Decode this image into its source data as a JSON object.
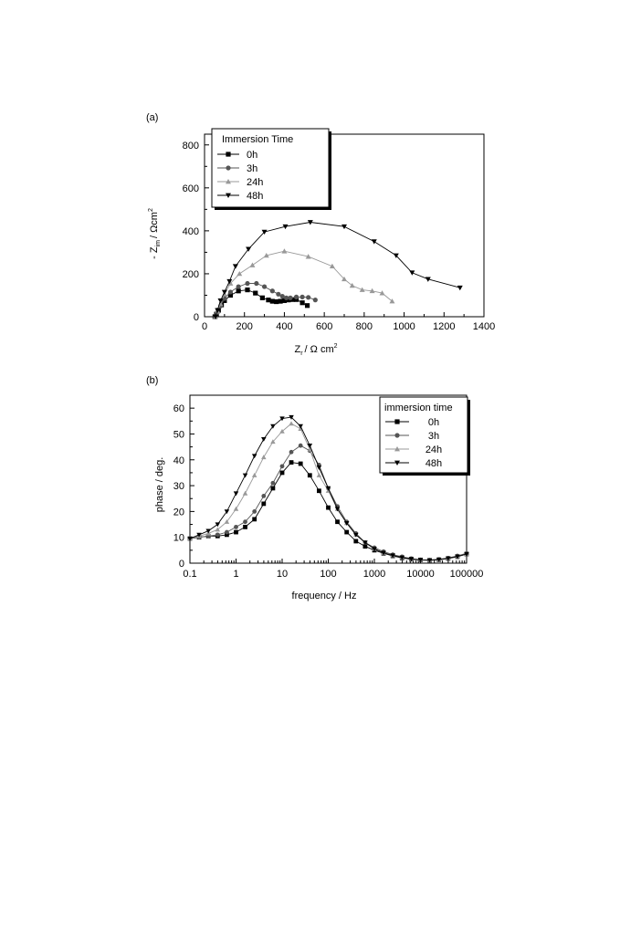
{
  "chart_data": [
    {
      "panel_label": "(a)",
      "type": "scatter",
      "xlabel": "Z",
      "xlabel_sub": "r",
      "xlabel_unit": "/ Ω cm",
      "xlabel_sup": "2",
      "ylabel": "- Z",
      "ylabel_sub": "im",
      "ylabel_unit": "/ Ωcm",
      "ylabel_sup": "2",
      "xlim": [
        0,
        1400
      ],
      "ylim": [
        0,
        850
      ],
      "x_ticks": [
        0,
        200,
        400,
        600,
        800,
        1000,
        1200,
        1400
      ],
      "y_ticks": [
        0,
        200,
        400,
        600,
        800
      ],
      "legend_title": "Immersion Time",
      "legend_position": "top-left",
      "series": [
        {
          "name": "0h",
          "marker": "square",
          "color": "#000000",
          "x": [
            52,
            60,
            70,
            85,
            100,
            130,
            170,
            215,
            255,
            290,
            320,
            340,
            360,
            380,
            400,
            420,
            440,
            460,
            490,
            515
          ],
          "y": [
            0,
            12,
            30,
            55,
            75,
            100,
            120,
            125,
            110,
            88,
            78,
            72,
            70,
            72,
            75,
            78,
            80,
            80,
            65,
            52
          ]
        },
        {
          "name": "3h",
          "marker": "circle",
          "color": "#555555",
          "x": [
            55,
            65,
            80,
            100,
            130,
            170,
            215,
            260,
            300,
            340,
            370,
            390,
            410,
            430,
            460,
            490,
            520,
            555
          ],
          "y": [
            0,
            20,
            50,
            85,
            115,
            140,
            155,
            155,
            140,
            120,
            105,
            95,
            88,
            88,
            92,
            92,
            90,
            78
          ]
        },
        {
          "name": "24h",
          "marker": "triangle-up",
          "color": "#999999",
          "x": [
            55,
            65,
            80,
            100,
            130,
            175,
            240,
            310,
            400,
            520,
            640,
            700,
            740,
            790,
            840,
            890,
            940
          ],
          "y": [
            0,
            25,
            60,
            105,
            155,
            200,
            240,
            285,
            305,
            280,
            235,
            175,
            145,
            125,
            120,
            110,
            72
          ]
        },
        {
          "name": "48h",
          "marker": "triangle-down",
          "color": "#000000",
          "x": [
            55,
            65,
            80,
            100,
            125,
            155,
            220,
            300,
            405,
            530,
            700,
            850,
            960,
            1040,
            1120,
            1280
          ],
          "y": [
            0,
            30,
            75,
            115,
            165,
            235,
            315,
            395,
            420,
            440,
            420,
            350,
            285,
            205,
            175,
            135
          ]
        }
      ]
    },
    {
      "panel_label": "(b)",
      "type": "line",
      "xlabel": "frequency / Hz",
      "ylabel": "phase / deg.",
      "x_scale": "log",
      "xlim": [
        0.1,
        100000
      ],
      "ylim": [
        0,
        65
      ],
      "x_ticks": [
        0.1,
        1,
        10,
        100,
        1000,
        10000,
        100000
      ],
      "x_tick_labels": [
        "0.1",
        "1",
        "10",
        "100",
        "1000",
        "10000",
        "100000"
      ],
      "y_ticks": [
        0,
        10,
        20,
        30,
        40,
        50,
        60
      ],
      "legend_title": "immersion time",
      "legend_position": "top-right",
      "x": [
        0.1,
        0.158,
        0.251,
        0.398,
        0.631,
        1,
        1.58,
        2.51,
        3.98,
        6.31,
        10,
        15.8,
        25.1,
        39.8,
        63.1,
        100,
        158,
        251,
        398,
        631,
        1000,
        1580,
        2510,
        3980,
        6310,
        10000,
        15800,
        25100,
        39800,
        63100,
        100000
      ],
      "series": [
        {
          "name": "0h",
          "marker": "square",
          "color": "#000000",
          "values": [
            9.5,
            10,
            10.5,
            10.5,
            11,
            12,
            14,
            17,
            23,
            29,
            35,
            39,
            38.5,
            34,
            28,
            21.5,
            16,
            12,
            8.5,
            6.5,
            5,
            3.8,
            2.8,
            2,
            1.5,
            1.2,
            1.1,
            1.3,
            1.8,
            2.5,
            3.5
          ]
        },
        {
          "name": "3h",
          "marker": "circle",
          "color": "#555555",
          "values": [
            9.5,
            10,
            10.5,
            11,
            12,
            14,
            16,
            20,
            26,
            31,
            37.5,
            43,
            45.5,
            43.5,
            38,
            29,
            22,
            16,
            11.5,
            8,
            6,
            4.5,
            3.3,
            2.5,
            1.8,
            1.3,
            1.2,
            1.5,
            2,
            2.8,
            3.8
          ]
        },
        {
          "name": "24h",
          "marker": "triangle-up",
          "color": "#999999",
          "values": [
            9.5,
            10.5,
            11.5,
            13,
            16,
            21,
            27,
            34,
            41,
            47,
            51,
            54,
            52,
            44,
            34,
            28,
            21,
            15.5,
            11,
            8,
            5.5,
            4,
            3,
            2.2,
            1.6,
            1.3,
            1.2,
            1.4,
            1.9,
            2.6,
            3.5
          ]
        },
        {
          "name": "48h",
          "marker": "triangle-down",
          "color": "#000000",
          "values": [
            9.5,
            11,
            12.5,
            15,
            20,
            27,
            34,
            41.5,
            48,
            53,
            56,
            56.5,
            53,
            45.5,
            37,
            29,
            21,
            15.5,
            11,
            8,
            5.5,
            4,
            3,
            2.2,
            1.6,
            1.3,
            1.2,
            1.4,
            1.9,
            2.6,
            3.5
          ]
        }
      ]
    }
  ]
}
